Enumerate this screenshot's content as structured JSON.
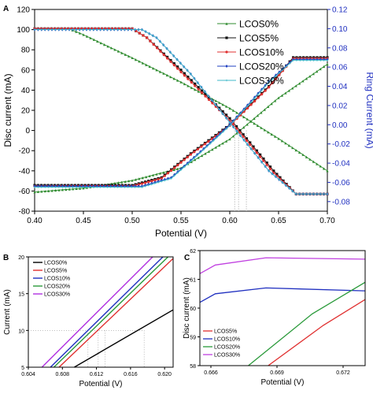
{
  "chart_data": [
    {
      "panel": "A",
      "type": "line",
      "xlabel": "Potential (V)",
      "ylabel": "Disc current (mA)",
      "y2label": "Ring Current (mA)",
      "xlim": [
        0.4,
        0.7
      ],
      "ylim": [
        -80,
        120
      ],
      "y2lim": [
        -0.09,
        0.12
      ],
      "xticks": [
        "0.40",
        "0.45",
        "0.50",
        "0.55",
        "0.60",
        "0.65",
        "0.70"
      ],
      "yticks": [
        "-80",
        "-60",
        "-40",
        "-20",
        "0",
        "20",
        "40",
        "60",
        "80",
        "100",
        "120"
      ],
      "y2ticks": [
        "-0.08",
        "-0.06",
        "-0.04",
        "-0.02",
        "0.00",
        "0.02",
        "0.04",
        "0.06",
        "0.08",
        "0.10",
        "0.12"
      ],
      "legend_position": "top-right",
      "grid": false,
      "series": [
        {
          "name": "LCOS0%",
          "color": "#2e8b2e",
          "marker": "triangle",
          "disc": [
            [
              0.4,
              101
            ],
            [
              0.435,
              101
            ],
            [
              0.45,
              95
            ],
            [
              0.5,
              72
            ],
            [
              0.55,
              48
            ],
            [
              0.6,
              22
            ],
            [
              0.65,
              -8
            ],
            [
              0.7,
              -40
            ]
          ],
          "ring": [
            [
              0.4,
              -0.07
            ],
            [
              0.45,
              -0.066
            ],
            [
              0.5,
              -0.058
            ],
            [
              0.55,
              -0.045
            ],
            [
              0.6,
              -0.015
            ],
            [
              0.65,
              0.028
            ],
            [
              0.7,
              0.063
            ]
          ]
        },
        {
          "name": "LCOS5%",
          "color": "#111111",
          "marker": "square",
          "disc": [
            [
              0.4,
              101
            ],
            [
              0.5,
              101
            ],
            [
              0.515,
              92
            ],
            [
              0.55,
              60
            ],
            [
              0.6,
              12
            ],
            [
              0.645,
              -40
            ],
            [
              0.668,
              -63
            ],
            [
              0.7,
              -63
            ]
          ],
          "ring": [
            [
              0.4,
              -0.063
            ],
            [
              0.5,
              -0.063
            ],
            [
              0.53,
              -0.055
            ],
            [
              0.56,
              -0.03
            ],
            [
              0.6,
              0.0
            ],
            [
              0.64,
              0.04
            ],
            [
              0.665,
              0.07
            ],
            [
              0.7,
              0.07
            ]
          ]
        },
        {
          "name": "LCOS10%",
          "color": "#e03030",
          "marker": "circle",
          "disc": [
            [
              0.4,
              101
            ],
            [
              0.5,
              101
            ],
            [
              0.515,
              92
            ],
            [
              0.55,
              58
            ],
            [
              0.6,
              10
            ],
            [
              0.645,
              -42
            ],
            [
              0.668,
              -63
            ],
            [
              0.7,
              -63
            ]
          ],
          "ring": [
            [
              0.4,
              -0.064
            ],
            [
              0.5,
              -0.064
            ],
            [
              0.53,
              -0.056
            ],
            [
              0.56,
              -0.031
            ],
            [
              0.6,
              -0.001
            ],
            [
              0.64,
              0.039
            ],
            [
              0.665,
              0.069
            ],
            [
              0.7,
              0.069
            ]
          ]
        },
        {
          "name": "LCOS20%",
          "color": "#2040c0",
          "marker": "diamond",
          "disc": [
            [
              0.4,
              100
            ],
            [
              0.51,
              100
            ],
            [
              0.525,
              92
            ],
            [
              0.56,
              56
            ],
            [
              0.6,
              8
            ],
            [
              0.64,
              -40
            ],
            [
              0.668,
              -63
            ],
            [
              0.7,
              -63
            ]
          ],
          "ring": [
            [
              0.4,
              -0.064
            ],
            [
              0.51,
              -0.064
            ],
            [
              0.54,
              -0.055
            ],
            [
              0.57,
              -0.028
            ],
            [
              0.6,
              0.0
            ],
            [
              0.64,
              0.045
            ],
            [
              0.665,
              0.068
            ],
            [
              0.7,
              0.068
            ]
          ]
        },
        {
          "name": "LCOS30%",
          "color": "#40b8c8",
          "marker": "star",
          "disc": [
            [
              0.4,
              100
            ],
            [
              0.51,
              100
            ],
            [
              0.525,
              92
            ],
            [
              0.56,
              56
            ],
            [
              0.6,
              8
            ],
            [
              0.64,
              -40
            ],
            [
              0.668,
              -63
            ],
            [
              0.7,
              -63
            ]
          ],
          "ring": [
            [
              0.4,
              -0.065
            ],
            [
              0.51,
              -0.065
            ],
            [
              0.54,
              -0.056
            ],
            [
              0.57,
              -0.029
            ],
            [
              0.6,
              -0.001
            ],
            [
              0.64,
              0.044
            ],
            [
              0.665,
              0.067
            ],
            [
              0.7,
              0.067
            ]
          ]
        }
      ]
    },
    {
      "panel": "B",
      "type": "line",
      "xlabel": "Potential (V)",
      "ylabel": "Current (mA)",
      "xlim": [
        0.604,
        0.621
      ],
      "ylim": [
        5,
        20
      ],
      "xticks": [
        "0.604",
        "0.608",
        "0.612",
        "0.616",
        "0.620"
      ],
      "yticks": [
        "5",
        "10",
        "15",
        "20"
      ],
      "legend_position": "top-left",
      "grid": false,
      "series": [
        {
          "name": "LCOS0%",
          "color": "#000000",
          "points": [
            [
              0.6094,
              5
            ],
            [
              0.621,
              12.8
            ]
          ]
        },
        {
          "name": "LCOS5%",
          "color": "#e03030",
          "points": [
            [
              0.6076,
              5
            ],
            [
              0.6212,
              20
            ]
          ]
        },
        {
          "name": "LCOS10%",
          "color": "#2030c0",
          "points": [
            [
              0.6066,
              5
            ],
            [
              0.6198,
              20
            ]
          ]
        },
        {
          "name": "LCOS20%",
          "color": "#2a9a3a",
          "points": [
            [
              0.607,
              5
            ],
            [
              0.6204,
              20
            ]
          ]
        },
        {
          "name": "LCOS30%",
          "color": "#b030e0",
          "points": [
            [
              0.6056,
              5
            ],
            [
              0.6186,
              20
            ]
          ]
        }
      ]
    },
    {
      "panel": "C",
      "type": "line",
      "xlabel": "Potential (V)",
      "ylabel": "Disc current (mA)",
      "xlim": [
        0.6655,
        0.673
      ],
      "ylim": [
        58,
        62
      ],
      "xticks": [
        "0.666",
        "0.669",
        "0.672"
      ],
      "yticks": [
        "58",
        "59",
        "60",
        "61",
        "62"
      ],
      "legend_position": "bottom-left",
      "grid": false,
      "series": [
        {
          "name": "LCOS5%",
          "color": "#e03030",
          "points": [
            [
              0.6686,
              58.0
            ],
            [
              0.6711,
              59.4
            ],
            [
              0.673,
              60.3
            ]
          ]
        },
        {
          "name": "LCOS10%",
          "color": "#2030c0",
          "points": [
            [
              0.6655,
              60.2
            ],
            [
              0.6662,
              60.5
            ],
            [
              0.6685,
              60.7
            ],
            [
              0.673,
              60.6
            ]
          ]
        },
        {
          "name": "LCOS20%",
          "color": "#2a9a3a",
          "points": [
            [
              0.6677,
              58.0
            ],
            [
              0.6706,
              59.8
            ],
            [
              0.673,
              60.9
            ]
          ]
        },
        {
          "name": "LCOS30%",
          "color": "#c040e0",
          "points": [
            [
              0.6655,
              61.2
            ],
            [
              0.6662,
              61.5
            ],
            [
              0.6685,
              61.75
            ],
            [
              0.673,
              61.7
            ]
          ]
        }
      ]
    }
  ],
  "panel_labels": {
    "a": "A",
    "b": "B",
    "c": "C"
  }
}
